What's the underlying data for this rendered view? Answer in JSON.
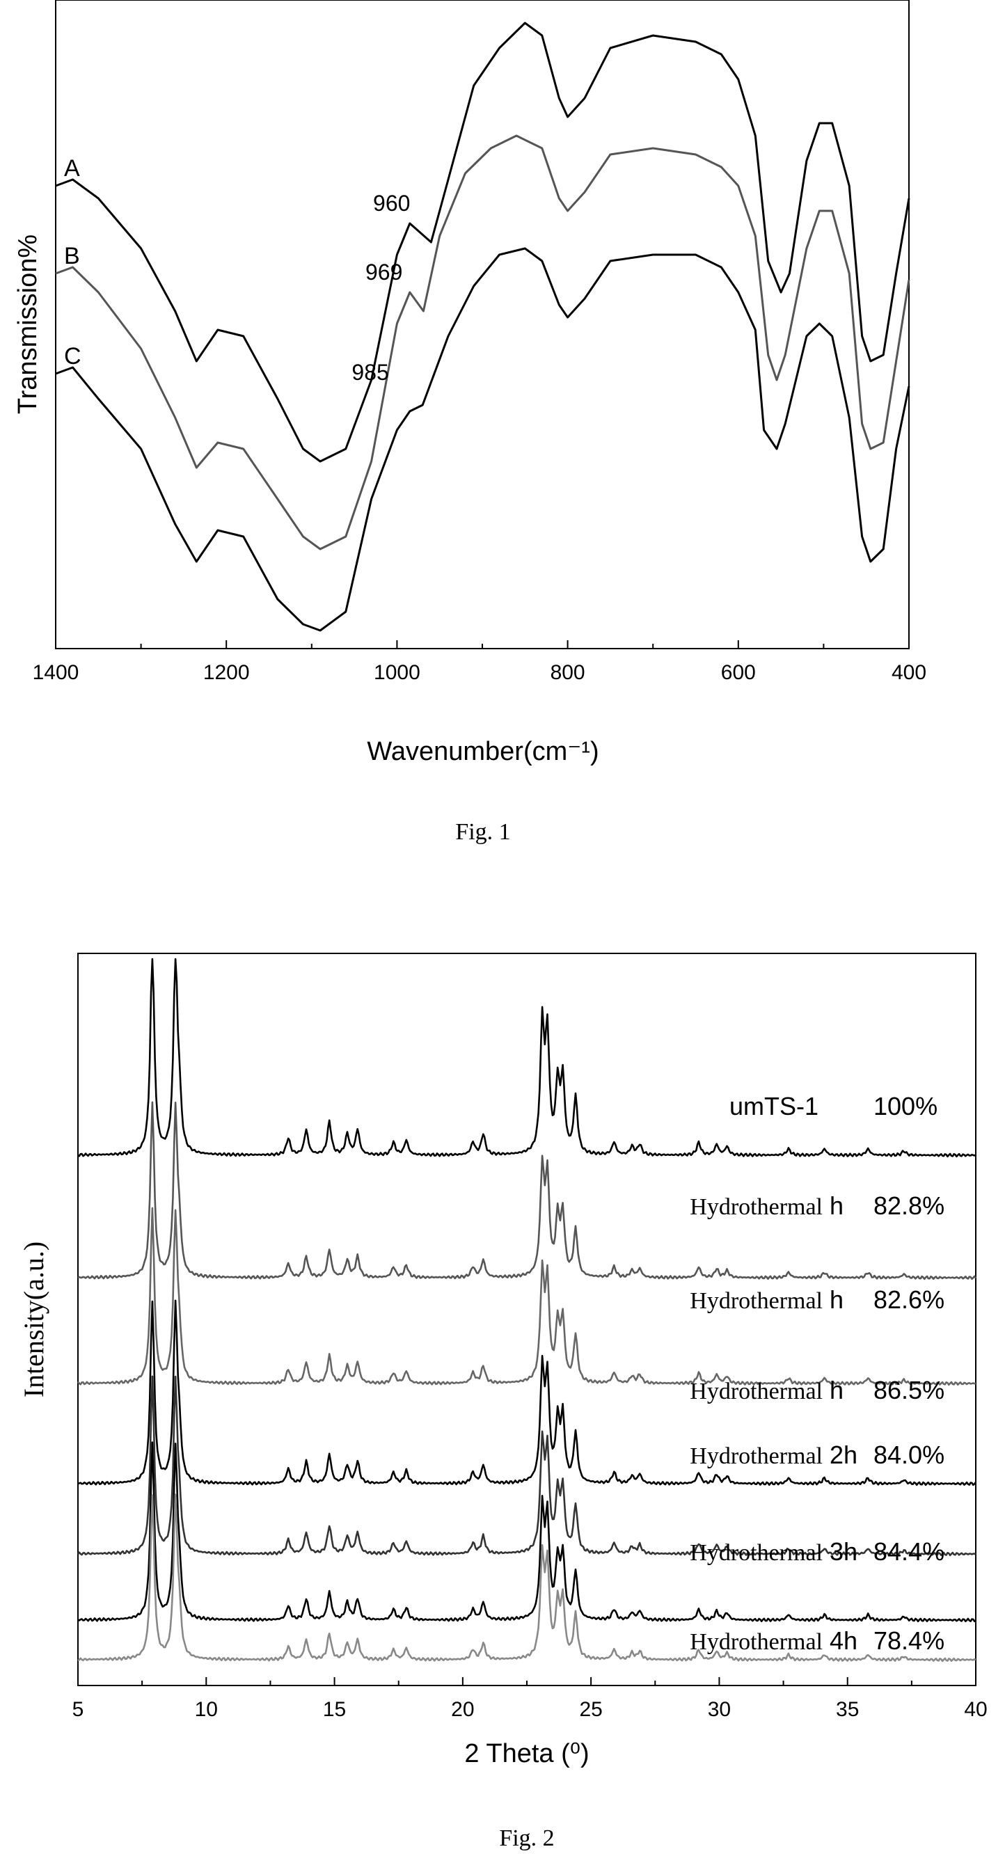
{
  "chart_data": [
    {
      "type": "line",
      "caption": "Fig. 1",
      "xlabel": "Wavenumber(cm⁻¹)",
      "ylabel": "Transmission%",
      "xlim": [
        1400,
        400
      ],
      "xticks": [
        1400,
        1200,
        1000,
        800,
        600,
        400
      ],
      "legend": "none",
      "grid": false,
      "series": [
        {
          "name": "A",
          "color": "#000000",
          "x": [
            1400,
            1380,
            1350,
            1300,
            1260,
            1235,
            1210,
            1180,
            1140,
            1110,
            1090,
            1060,
            1030,
            1000,
            985,
            960,
            940,
            910,
            880,
            850,
            830,
            810,
            800,
            780,
            750,
            700,
            650,
            620,
            600,
            580,
            565,
            550,
            540,
            520,
            505,
            490,
            470,
            455,
            445,
            430,
            415,
            400
          ],
          "y": [
            72,
            73,
            70,
            62,
            52,
            44,
            49,
            48,
            38,
            30,
            28,
            30,
            41,
            61,
            66,
            63,
            73,
            88,
            94,
            98,
            96,
            86,
            83,
            86,
            94,
            96,
            95,
            93,
            89,
            80,
            60,
            55,
            58,
            76,
            82,
            82,
            72,
            48,
            44,
            45,
            58,
            70
          ]
        },
        {
          "name": "B",
          "color": "#555555",
          "x": [
            1400,
            1380,
            1350,
            1300,
            1260,
            1235,
            1210,
            1180,
            1140,
            1110,
            1090,
            1060,
            1030,
            1000,
            985,
            969,
            950,
            920,
            890,
            860,
            830,
            810,
            800,
            780,
            750,
            700,
            650,
            620,
            600,
            580,
            565,
            555,
            545,
            520,
            505,
            490,
            470,
            455,
            445,
            430,
            415,
            400
          ],
          "y": [
            58,
            59,
            55,
            46,
            35,
            27,
            31,
            30,
            22,
            16,
            14,
            16,
            28,
            50,
            55,
            52,
            64,
            74,
            78,
            80,
            78,
            70,
            68,
            71,
            77,
            78,
            77,
            75,
            72,
            64,
            45,
            41,
            45,
            62,
            68,
            68,
            58,
            34,
            30,
            31,
            44,
            57
          ]
        },
        {
          "name": "C",
          "color": "#000000",
          "x": [
            1400,
            1380,
            1350,
            1300,
            1260,
            1235,
            1210,
            1180,
            1140,
            1110,
            1090,
            1060,
            1030,
            1000,
            985,
            970,
            940,
            910,
            880,
            850,
            830,
            810,
            800,
            780,
            750,
            700,
            650,
            620,
            600,
            580,
            570,
            555,
            545,
            520,
            505,
            490,
            470,
            455,
            445,
            430,
            415,
            400
          ],
          "y": [
            42,
            43,
            38,
            30,
            18,
            12,
            17,
            16,
            6,
            2,
            1,
            4,
            22,
            33,
            36,
            37,
            48,
            56,
            61,
            62,
            60,
            53,
            51,
            54,
            60,
            61,
            61,
            59,
            55,
            49,
            33,
            30,
            34,
            48,
            50,
            48,
            35,
            16,
            12,
            14,
            30,
            40
          ]
        }
      ],
      "annotations": [
        {
          "text": "960",
          "x": 960,
          "y": 68
        },
        {
          "text": "969",
          "x": 969,
          "y": 57
        },
        {
          "text": "985",
          "x": 985,
          "y": 41
        }
      ]
    },
    {
      "type": "line",
      "caption": "Fig. 2",
      "xlabel": "2 Theta (⁰)",
      "ylabel": "Intensity(a.u.)",
      "xlim": [
        5,
        40
      ],
      "xticks": [
        5,
        10,
        15,
        20,
        25,
        30,
        35,
        40
      ],
      "legend": "none",
      "grid": false,
      "peaks": [
        {
          "x": 7.9,
          "h": 100
        },
        {
          "x": 8.8,
          "h": 94
        },
        {
          "x": 8.95,
          "h": 22
        },
        {
          "x": 13.2,
          "h": 8
        },
        {
          "x": 13.9,
          "h": 12
        },
        {
          "x": 14.8,
          "h": 16
        },
        {
          "x": 15.5,
          "h": 10
        },
        {
          "x": 15.9,
          "h": 12
        },
        {
          "x": 17.3,
          "h": 6
        },
        {
          "x": 17.8,
          "h": 7
        },
        {
          "x": 20.4,
          "h": 6
        },
        {
          "x": 20.8,
          "h": 10
        },
        {
          "x": 23.1,
          "h": 60
        },
        {
          "x": 23.3,
          "h": 55
        },
        {
          "x": 23.7,
          "h": 32
        },
        {
          "x": 23.9,
          "h": 35
        },
        {
          "x": 24.4,
          "h": 27
        },
        {
          "x": 25.9,
          "h": 6
        },
        {
          "x": 26.6,
          "h": 4
        },
        {
          "x": 26.9,
          "h": 5
        },
        {
          "x": 29.2,
          "h": 6
        },
        {
          "x": 29.9,
          "h": 5
        },
        {
          "x": 30.3,
          "h": 4
        },
        {
          "x": 32.7,
          "h": 3
        },
        {
          "x": 34.1,
          "h": 3
        },
        {
          "x": 35.8,
          "h": 3
        },
        {
          "x": 37.2,
          "h": 2
        }
      ],
      "series": [
        {
          "name": "umTS-1 100%",
          "parts": [
            "umTS-1",
            "100%"
          ],
          "color": "#000000",
          "scale": 1.0
        },
        {
          "name": "Hydrothermal h 82.8%",
          "parts": [
            "Hydrothermal",
            "h",
            "82.8%"
          ],
          "color": "#555555",
          "scale": 0.83
        },
        {
          "name": "Hydrothermal h 82.6%",
          "parts": [
            "Hydrothermal",
            "h",
            "82.6%"
          ],
          "color": "#666666",
          "scale": 0.83
        },
        {
          "name": "Hydrothermal h 86.5%",
          "parts": [
            "Hydrothermal",
            "h",
            "86.5%"
          ],
          "color": "#000000",
          "scale": 0.87
        },
        {
          "name": "Hydrothermal 2h 84.0%",
          "parts": [
            "Hydrothermal",
            "2h",
            "84.0%"
          ],
          "color": "#333333",
          "scale": 0.84
        },
        {
          "name": "Hydrothermal 3h 84.4%",
          "parts": [
            "Hydrothermal",
            "3h",
            "84.4%"
          ],
          "color": "#000000",
          "scale": 0.84
        },
        {
          "name": "Hydrothermal 4h 78.4%",
          "parts": [
            "Hydrothermal",
            "4h",
            "78.4%"
          ],
          "color": "#888888",
          "scale": 0.78
        }
      ]
    }
  ]
}
